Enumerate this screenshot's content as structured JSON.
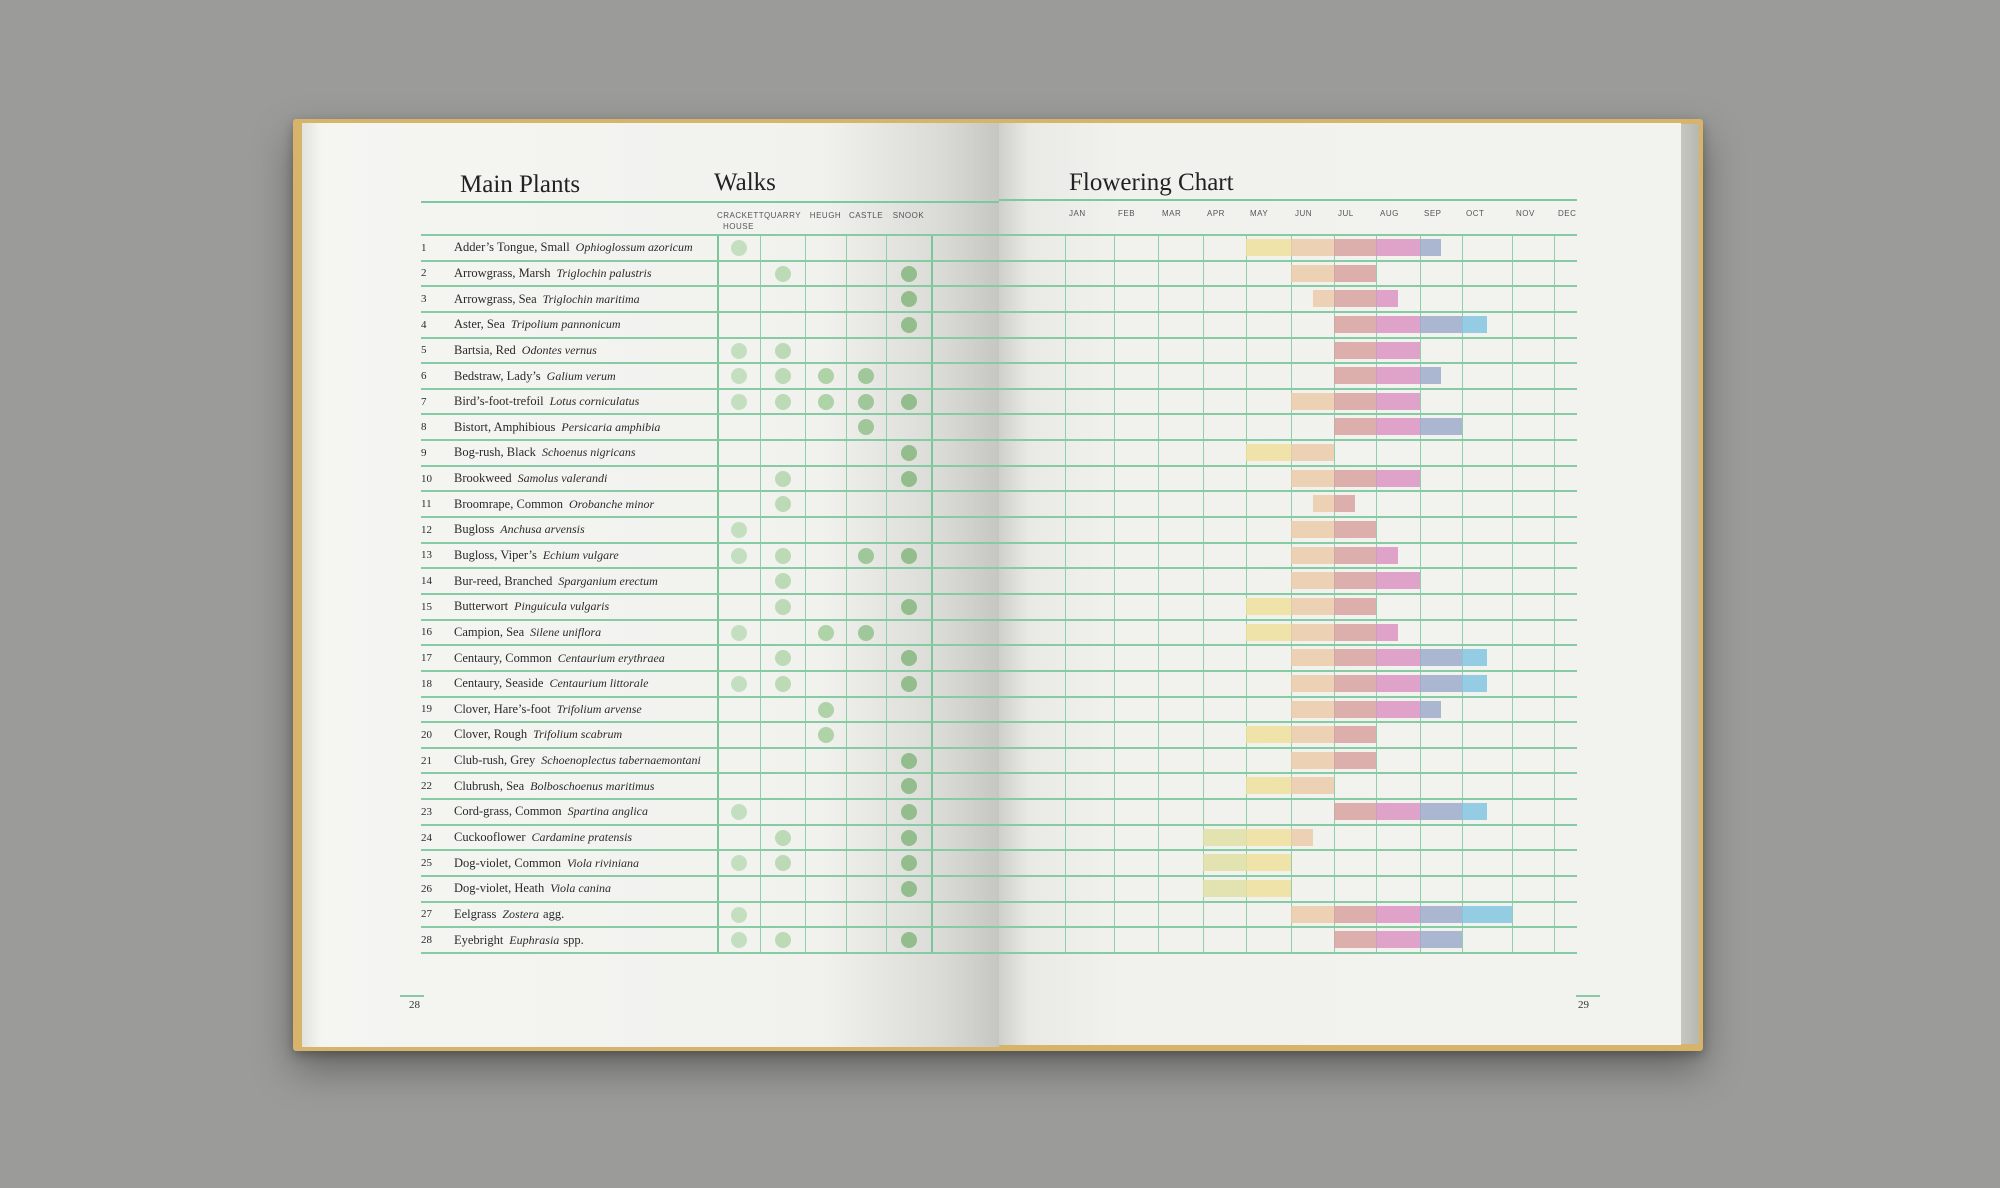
{
  "left_page": {
    "title": "Main Plants",
    "walks_title": "Walks",
    "walk_columns": [
      "CRACKETT HOUSE",
      "QUARRY",
      "HEUGH",
      "CASTLE",
      "SNOOK"
    ],
    "walk_colors": [
      "#c4dfbf",
      "#bcdab5",
      "#aed3a6",
      "#9fc799",
      "#93bd8c"
    ],
    "page_number": "28"
  },
  "right_page": {
    "title": "Flowering Chart",
    "months": [
      "JAN",
      "FEB",
      "MAR",
      "APR",
      "MAY",
      "JUN",
      "JUL",
      "AUG",
      "SEP",
      "OCT",
      "NOV",
      "DEC"
    ],
    "month_colors": [
      "#e6e3b0",
      "#e6e3b0",
      "#e6e3b0",
      "#dfe0a6",
      "#efe09c",
      "#ebcba9",
      "#d9a3a0",
      "#dc95c3",
      "#9fabcb",
      "#82c6e0",
      "#82c6e0",
      "#82c6e0"
    ],
    "page_number": "29"
  },
  "chart_data": {
    "type": "table",
    "title": "Flowering Chart",
    "note": "flowering ranges in months (0 = start of Jan, 12 = end of Dec)",
    "plants": [
      {
        "n": "1",
        "common": "Adder’s Tongue, Small",
        "latin": "Ophioglossum azoricum",
        "suffix": "",
        "walks": [
          1,
          0,
          0,
          0,
          0
        ],
        "flower": [
          4,
          8.5
        ]
      },
      {
        "n": "2",
        "common": "Arrowgrass, Marsh",
        "latin": "Triglochin palustris",
        "suffix": "",
        "walks": [
          0,
          1,
          0,
          0,
          1
        ],
        "flower": [
          5,
          7
        ]
      },
      {
        "n": "3",
        "common": "Arrowgrass, Sea",
        "latin": "Triglochin maritima",
        "suffix": "",
        "walks": [
          0,
          0,
          0,
          0,
          1
        ],
        "flower": [
          5.5,
          7.5
        ]
      },
      {
        "n": "4",
        "common": "Aster, Sea",
        "latin": "Tripolium pannonicum",
        "suffix": "",
        "walks": [
          0,
          0,
          0,
          0,
          1
        ],
        "flower": [
          6,
          9.5
        ]
      },
      {
        "n": "5",
        "common": "Bartsia, Red",
        "latin": "Odontes vernus",
        "suffix": "",
        "walks": [
          1,
          1,
          0,
          0,
          0
        ],
        "flower": [
          6,
          8
        ]
      },
      {
        "n": "6",
        "common": "Bedstraw, Lady’s",
        "latin": "Galium verum",
        "suffix": "",
        "walks": [
          1,
          1,
          1,
          1,
          0
        ],
        "flower": [
          6,
          8.5
        ]
      },
      {
        "n": "7",
        "common": "Bird’s-foot-trefoil",
        "latin": "Lotus corniculatus",
        "suffix": "",
        "walks": [
          1,
          1,
          1,
          1,
          1
        ],
        "flower": [
          5,
          8
        ]
      },
      {
        "n": "8",
        "common": "Bistort, Amphibious",
        "latin": "Persicaria amphibia",
        "suffix": "",
        "walks": [
          0,
          0,
          0,
          1,
          0
        ],
        "flower": [
          6,
          9
        ]
      },
      {
        "n": "9",
        "common": "Bog-rush, Black",
        "latin": "Schoenus nigricans",
        "suffix": "",
        "walks": [
          0,
          0,
          0,
          0,
          1
        ],
        "flower": [
          4,
          6
        ]
      },
      {
        "n": "10",
        "common": "Brookweed",
        "latin": "Samolus valerandi",
        "suffix": "",
        "walks": [
          0,
          1,
          0,
          0,
          1
        ],
        "flower": [
          5,
          8
        ]
      },
      {
        "n": "11",
        "common": "Broomrape, Common",
        "latin": "Orobanche minor",
        "suffix": "",
        "walks": [
          0,
          1,
          0,
          0,
          0
        ],
        "flower": [
          5.5,
          6.5
        ]
      },
      {
        "n": "12",
        "common": "Bugloss",
        "latin": "Anchusa arvensis",
        "suffix": "",
        "walks": [
          1,
          0,
          0,
          0,
          0
        ],
        "flower": [
          5,
          7
        ]
      },
      {
        "n": "13",
        "common": "Bugloss, Viper’s",
        "latin": "Echium vulgare",
        "suffix": "",
        "walks": [
          1,
          1,
          0,
          1,
          1
        ],
        "flower": [
          5,
          7.5
        ]
      },
      {
        "n": "14",
        "common": "Bur-reed, Branched",
        "latin": "Sparganium erectum",
        "suffix": "",
        "walks": [
          0,
          1,
          0,
          0,
          0
        ],
        "flower": [
          5,
          8
        ]
      },
      {
        "n": "15",
        "common": "Butterwort",
        "latin": "Pinguicula vulgaris",
        "suffix": "",
        "walks": [
          0,
          1,
          0,
          0,
          1
        ],
        "flower": [
          4,
          7
        ]
      },
      {
        "n": "16",
        "common": "Campion, Sea",
        "latin": "Silene uniflora",
        "suffix": "",
        "walks": [
          1,
          0,
          1,
          1,
          0
        ],
        "flower": [
          4,
          7.5
        ]
      },
      {
        "n": "17",
        "common": "Centaury, Common",
        "latin": "Centaurium erythraea",
        "suffix": "",
        "walks": [
          0,
          1,
          0,
          0,
          1
        ],
        "flower": [
          5,
          9.5
        ]
      },
      {
        "n": "18",
        "common": "Centaury, Seaside",
        "latin": "Centaurium littorale",
        "suffix": "",
        "walks": [
          1,
          1,
          0,
          0,
          1
        ],
        "flower": [
          5,
          9.5
        ]
      },
      {
        "n": "19",
        "common": "Clover, Hare’s-foot",
        "latin": "Trifolium arvense",
        "suffix": "",
        "walks": [
          0,
          0,
          1,
          0,
          0
        ],
        "flower": [
          5,
          8.5
        ]
      },
      {
        "n": "20",
        "common": "Clover, Rough",
        "latin": "Trifolium scabrum",
        "suffix": "",
        "walks": [
          0,
          0,
          1,
          0,
          0
        ],
        "flower": [
          4,
          7
        ]
      },
      {
        "n": "21",
        "common": "Club-rush, Grey",
        "latin": "Schoenoplectus tabernaemontani",
        "suffix": "",
        "walks": [
          0,
          0,
          0,
          0,
          1
        ],
        "flower": [
          5,
          7
        ]
      },
      {
        "n": "22",
        "common": "Clubrush, Sea",
        "latin": "Bolboschoenus maritimus",
        "suffix": "",
        "walks": [
          0,
          0,
          0,
          0,
          1
        ],
        "flower": [
          4,
          6
        ]
      },
      {
        "n": "23",
        "common": "Cord-grass, Common",
        "latin": "Spartina anglica",
        "suffix": "",
        "walks": [
          1,
          0,
          0,
          0,
          1
        ],
        "flower": [
          6,
          9.5
        ]
      },
      {
        "n": "24",
        "common": "Cuckooflower",
        "latin": "Cardamine pratensis",
        "suffix": "",
        "walks": [
          0,
          1,
          0,
          0,
          1
        ],
        "flower": [
          3,
          5.5
        ]
      },
      {
        "n": "25",
        "common": "Dog-violet, Common",
        "latin": "Viola riviniana",
        "suffix": "",
        "walks": [
          1,
          1,
          0,
          0,
          1
        ],
        "flower": [
          3,
          5
        ]
      },
      {
        "n": "26",
        "common": "Dog-violet, Heath",
        "latin": "Viola canina",
        "suffix": "",
        "walks": [
          0,
          0,
          0,
          0,
          1
        ],
        "flower": [
          3,
          5
        ]
      },
      {
        "n": "27",
        "common": "Eelgrass",
        "latin": "Zostera",
        "suffix": "agg.",
        "walks": [
          1,
          0,
          0,
          0,
          0
        ],
        "flower": [
          5,
          10
        ]
      },
      {
        "n": "28",
        "common": "Eyebright",
        "latin": "Euphrasia",
        "suffix": "spp.",
        "walks": [
          1,
          1,
          0,
          0,
          1
        ],
        "flower": [
          6,
          9
        ]
      }
    ]
  }
}
